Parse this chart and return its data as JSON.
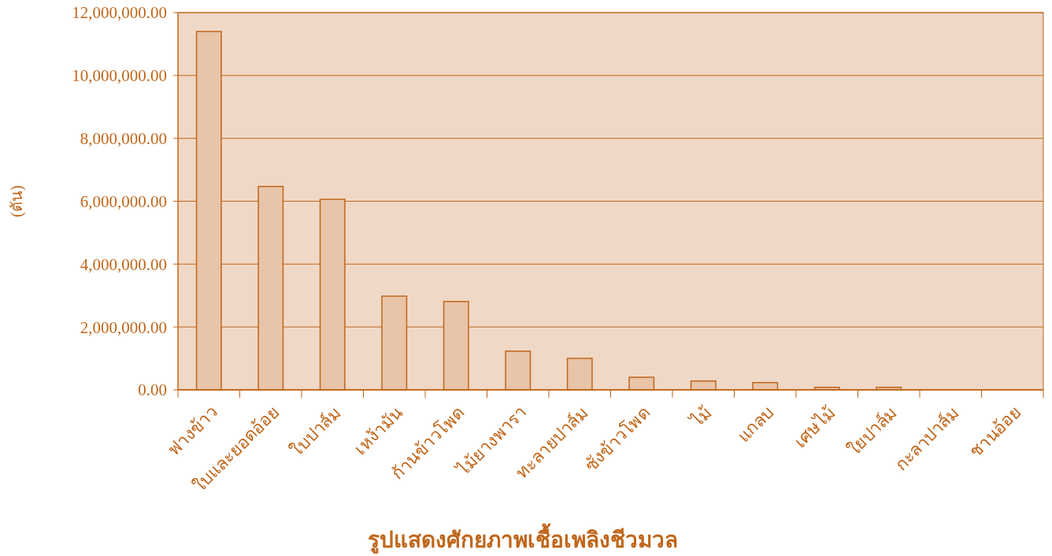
{
  "chart_data": {
    "type": "bar",
    "title": "รูปแสดงศักยภาพเชื้อเพลิงชีวมวล",
    "ylabel": "(ตัน)",
    "categories": [
      "ฟางข้าว",
      "ใบและยอดอ้อย",
      "ใบปาล์ม",
      "เหง้ามัน",
      "ก้านข้าวโพด",
      "ไม้ยางพารา",
      "ทะลายปาล์ม",
      "ซังข้าวโพด",
      "ไม้",
      "แกลบ",
      "เศษไม้",
      "ใยปาล์ม",
      "กะลาปาล์ม",
      "ชานอ้อย"
    ],
    "values": [
      11400000,
      6470000,
      6060000,
      2980000,
      2810000,
      1230000,
      1000000,
      400000,
      280000,
      230000,
      80000,
      80000,
      0,
      0
    ],
    "color": "#e8c4a8",
    "ylim": [
      0,
      12000000
    ],
    "yticks": [
      {
        "value": 0,
        "label": "0.00"
      },
      {
        "value": 2000000,
        "label": "2,000,000.00"
      },
      {
        "value": 4000000,
        "label": "4,000,000.00"
      },
      {
        "value": 6000000,
        "label": "6,000,000.00"
      },
      {
        "value": 8000000,
        "label": "8,000,000.00"
      },
      {
        "value": 10000000,
        "label": "10,000,000.00"
      },
      {
        "value": 12000000,
        "label": "12,000,000.00"
      }
    ],
    "grid": "y"
  }
}
